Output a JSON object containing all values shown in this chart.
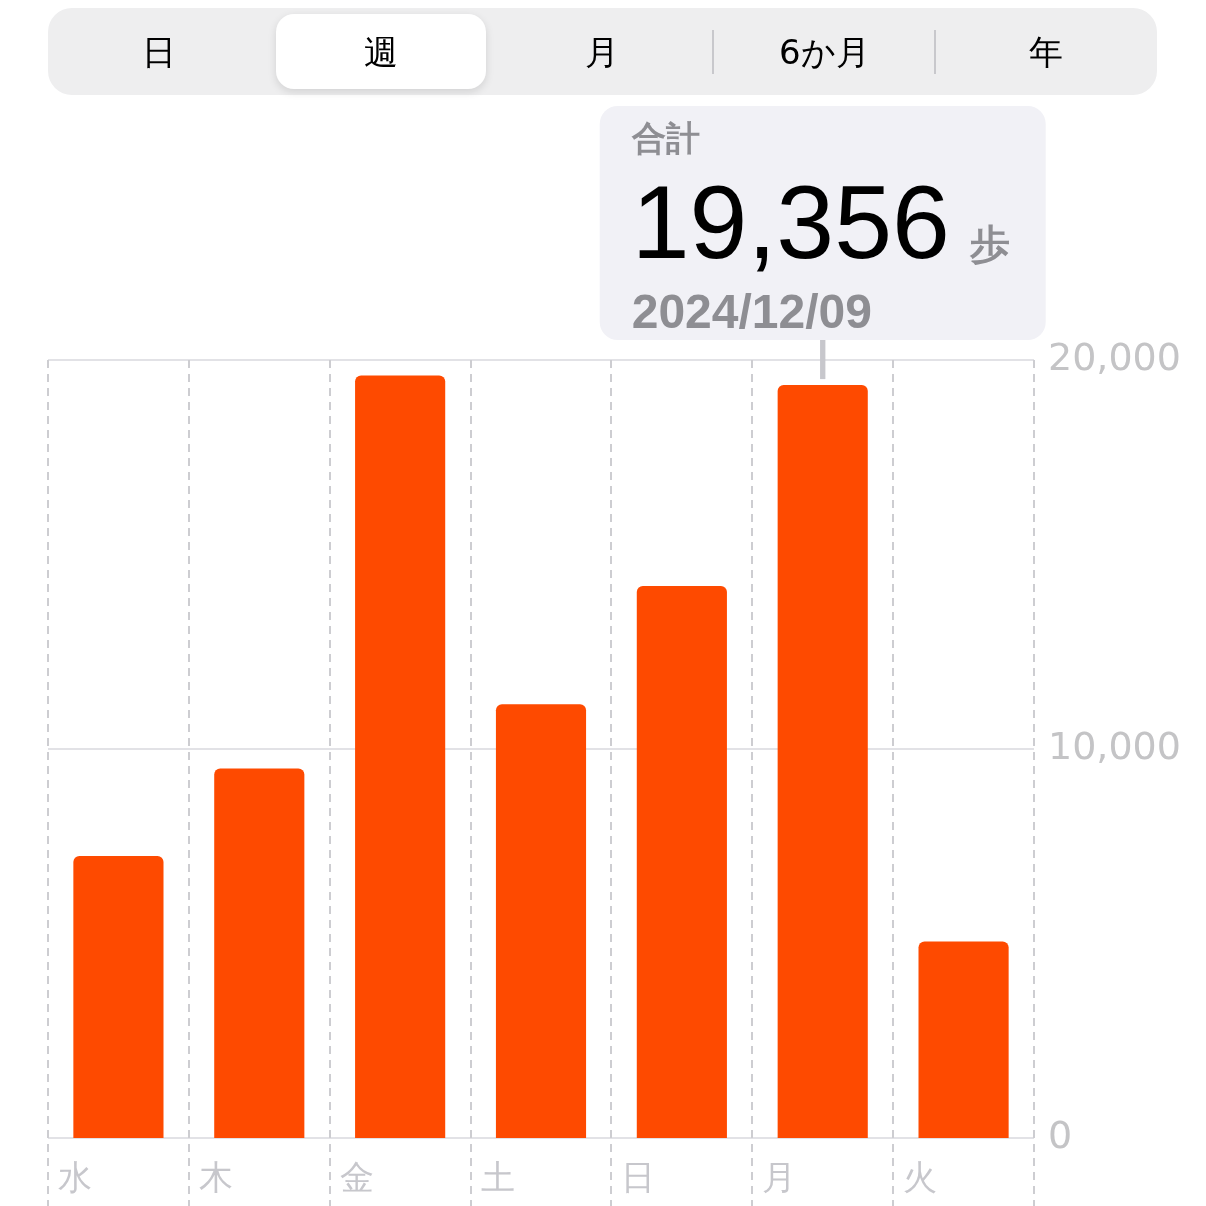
{
  "chart_data": {
    "type": "bar",
    "categories": [
      "水",
      "木",
      "金",
      "土",
      "日",
      "月",
      "火"
    ],
    "values": [
      7250,
      9500,
      19600,
      11150,
      14190,
      19356,
      5050
    ],
    "color": "#fe4a00",
    "ylim": [
      0,
      20000
    ],
    "yticks": [
      0,
      {
        "value": 10000,
        "label": "10,000"
      },
      {
        "value": 20000,
        "label": "20,000"
      }
    ],
    "grid": true,
    "annotations": [
      "日",
      "週",
      "月",
      "6か月",
      "年",
      {
        "text": "19,356 歩",
        "x": "月",
        "y": 19356
      },
      {
        "text": "2024/12/09",
        "x": "月",
        "y": 19356
      },
      "合計"
    ]
  }
}
